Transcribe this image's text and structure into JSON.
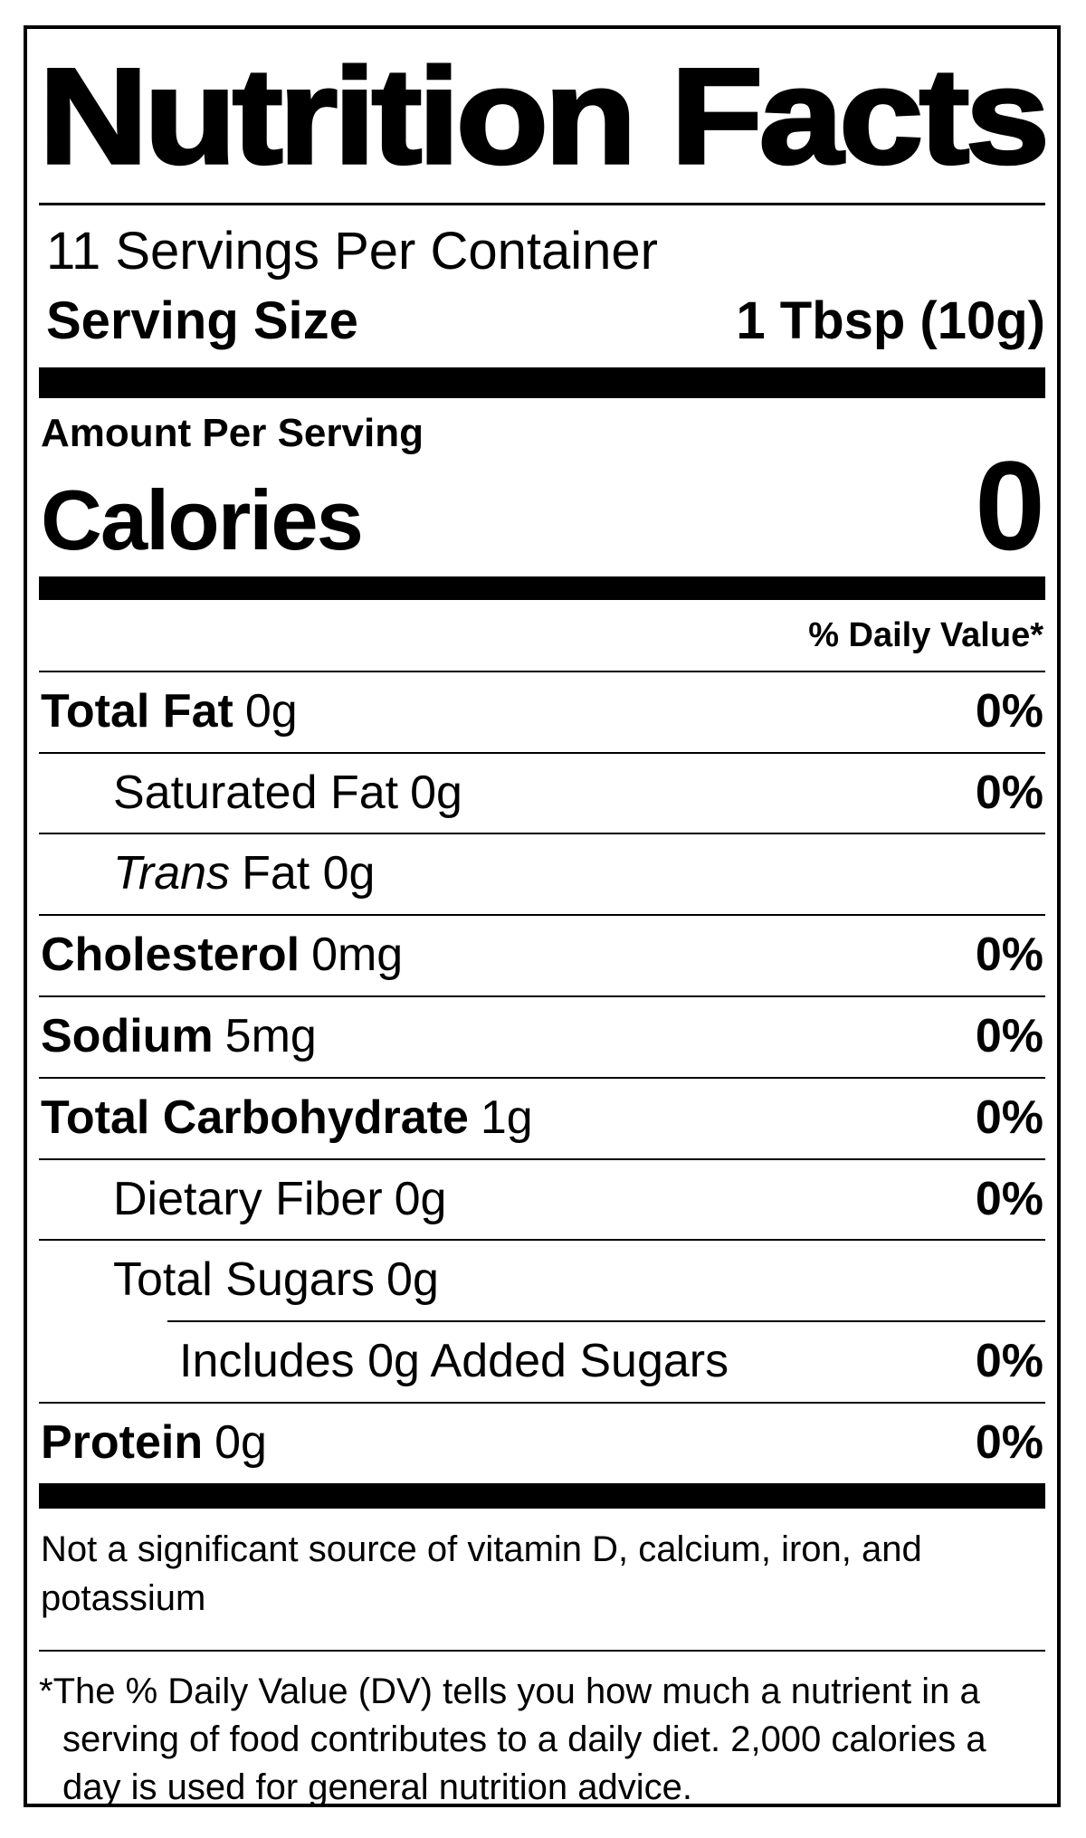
{
  "colors": {
    "text": "#000000",
    "background": "#ffffff",
    "rule": "#000000"
  },
  "label": {
    "title": "Nutrition Facts",
    "servings_per_container": "11 Servings Per Container",
    "serving_size": {
      "label": "Serving Size",
      "value": "1 Tbsp (10g)"
    },
    "amount_per_serving": "Amount Per Serving",
    "calories": {
      "label": "Calories",
      "value": "0"
    },
    "daily_value_header": "% Daily Value*",
    "rows": [
      {
        "name": "Total Fat",
        "qty": "0g",
        "pct": "0%"
      },
      {
        "name": "Saturated Fat",
        "qty": "0g",
        "pct": "0%"
      },
      {
        "name": "Trans",
        "qty": "Fat 0g",
        "pct": ""
      },
      {
        "name": "Cholesterol",
        "qty": "0mg",
        "pct": "0%"
      },
      {
        "name": "Sodium",
        "qty": "5mg",
        "pct": "0%"
      },
      {
        "name": "Total Carbohydrate",
        "qty": "1g",
        "pct": "0%"
      },
      {
        "name": "Dietary Fiber",
        "qty": "0g",
        "pct": "0%"
      },
      {
        "name": "Total Sugars",
        "qty": "0g",
        "pct": ""
      },
      {
        "name": "Includes 0g Added Sugars",
        "qty": "",
        "pct": "0%"
      },
      {
        "name": "Protein",
        "qty": "0g",
        "pct": "0%"
      }
    ],
    "not_significant": "Not a significant source of vitamin D, calcium, iron, and potassium",
    "footnote_marker": "*",
    "footnote": "The % Daily Value (DV) tells you how much a nutrient in a serving of food contributes to a daily diet. 2,000 calories a day is used for general nutrition advice."
  }
}
